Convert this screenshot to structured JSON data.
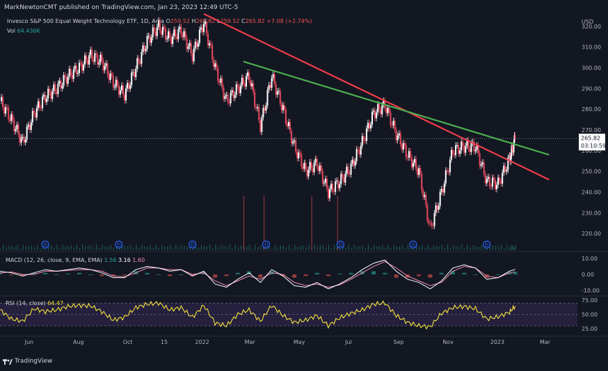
{
  "header": {
    "published": "MarkNewtonCMT published on TradingView.com, Jan 23, 2023 12:49 UTC-5",
    "symbol": "Invesco S&P 500 Equal Weight Technology ETF, 1D, Arca",
    "o_label": "O",
    "o_value": "259.52",
    "h_label": "H",
    "h_value": "265.82",
    "l_label": "L",
    "l_value": "259.52",
    "c_label": "C",
    "c_value": "265.82",
    "change": "+7.08 (+2.74%)",
    "vol_label": "Vol",
    "vol_value": "64.436K"
  },
  "price_axis": {
    "currency": "USD",
    "last_price": "265.82",
    "countdown": "03:10:59"
  },
  "macd": {
    "label": "MACD (12, 26, close, 9, EMA, EMA)",
    "v1": "1.56",
    "v2": "3.16",
    "v3": "1.60",
    "ticks": [
      "10.00",
      "0.00",
      "-10.00"
    ]
  },
  "rsi": {
    "label": "RSI (14, close)",
    "value": "64.47",
    "ticks": [
      "75.00",
      "50.00",
      "25.00"
    ]
  },
  "brand": "TradingView",
  "colors": {
    "background": "#131722",
    "up": "#ffffff",
    "down": "#e84a5f",
    "trend_red": "#ef3e4a",
    "trend_green": "#4caf50",
    "macd_line": "#ffffff",
    "signal_line": "#f48fb1",
    "rsi_line": "#f5e43b",
    "rsi_band": "#2a2346"
  },
  "chart_data": {
    "type": "line",
    "title": "Invesco S&P 500 Equal Weight Technology ETF, 1D, Arca",
    "ylabel": "USD",
    "ylim": [
      212,
      326
    ],
    "yticks": [
      220,
      230,
      240,
      250,
      260,
      270,
      280,
      290,
      300,
      310,
      320
    ],
    "x_tick_labels": [
      "Jun",
      "Aug",
      "Oct",
      "15",
      "2022",
      "Mar",
      "May",
      "Jul",
      "Sep",
      "Nov",
      "2023",
      "Mar"
    ],
    "x_tick_dates": [
      "2021-06-01",
      "2021-08-01",
      "2021-10-01",
      "2021-11-15",
      "2022-01-01",
      "2022-03-01",
      "2022-05-01",
      "2022-07-01",
      "2022-09-01",
      "2022-11-01",
      "2023-01-01",
      "2023-03-01"
    ],
    "x_range": [
      "2021-04-26",
      "2023-04-10"
    ],
    "price_series": {
      "name": "Close",
      "dates": [
        "2021-04-26",
        "2021-05-10",
        "2021-05-24",
        "2021-06-07",
        "2021-06-21",
        "2021-07-05",
        "2021-07-19",
        "2021-08-02",
        "2021-08-16",
        "2021-08-30",
        "2021-09-13",
        "2021-09-27",
        "2021-10-11",
        "2021-10-25",
        "2021-11-08",
        "2021-11-22",
        "2021-12-06",
        "2021-12-20",
        "2022-01-03",
        "2022-01-17",
        "2022-01-31",
        "2022-02-14",
        "2022-02-28",
        "2022-03-14",
        "2022-03-28",
        "2022-04-11",
        "2022-04-25",
        "2022-05-09",
        "2022-05-23",
        "2022-06-06",
        "2022-06-20",
        "2022-07-04",
        "2022-07-18",
        "2022-08-01",
        "2022-08-15",
        "2022-08-29",
        "2022-09-12",
        "2022-09-26",
        "2022-10-10",
        "2022-10-24",
        "2022-11-07",
        "2022-11-21",
        "2022-12-05",
        "2022-12-19",
        "2023-01-02",
        "2023-01-16",
        "2023-01-23"
      ],
      "values": [
        284,
        275,
        264,
        278,
        286,
        290,
        296,
        300,
        306,
        303,
        293,
        287,
        300,
        313,
        320,
        314,
        318,
        306,
        322,
        300,
        284,
        290,
        296,
        272,
        296,
        280,
        262,
        250,
        254,
        240,
        245,
        252,
        264,
        278,
        282,
        268,
        258,
        250,
        222,
        240,
        260,
        262,
        262,
        245,
        244,
        256,
        265.82
      ]
    },
    "volume_spikes": [
      {
        "date": "2022-02-21",
        "value": "high"
      },
      {
        "date": "2022-03-18",
        "value": "high"
      },
      {
        "date": "2022-05-16",
        "value": "high"
      },
      {
        "date": "2022-06-17",
        "value": "high"
      }
    ],
    "dividend_markers": [
      "2021-06-21",
      "2021-09-20",
      "2021-12-20",
      "2022-03-21",
      "2022-06-21",
      "2022-09-19",
      "2022-12-19"
    ],
    "dividend_label": "D",
    "trendlines": [
      {
        "color": "red",
        "from": {
          "date": "2022-01-03",
          "value": 326
        },
        "to": {
          "date": "2023-03-06",
          "value": 246
        }
      },
      {
        "color": "green",
        "from": {
          "date": "2022-02-21",
          "value": 303
        },
        "to": {
          "date": "2023-03-06",
          "value": 258
        }
      }
    ],
    "macd_panel": {
      "ylim": [
        -13,
        13
      ],
      "macd": [
        2,
        1,
        -1,
        1,
        3,
        2,
        3,
        4,
        3,
        1,
        -2,
        -2,
        3,
        5,
        4,
        2,
        3,
        -1,
        2,
        -6,
        -8,
        -3,
        1,
        -5,
        3,
        -1,
        -7,
        -8,
        -5,
        -9,
        -6,
        -2,
        3,
        7,
        9,
        2,
        -3,
        -5,
        -9,
        -4,
        4,
        6,
        4,
        -3,
        -2,
        2,
        3.16
      ],
      "signal": [
        1,
        1.5,
        0,
        0,
        2,
        2,
        2.5,
        3,
        3,
        2,
        -1,
        -1.5,
        1,
        4,
        4,
        3,
        3,
        0,
        1,
        -4,
        -7,
        -4,
        -1,
        -3,
        1,
        0,
        -5,
        -7,
        -6,
        -8,
        -6.5,
        -3,
        1,
        5,
        8,
        4,
        -1,
        -4,
        -7,
        -5,
        2,
        5,
        4,
        -1,
        -2,
        1,
        1.6
      ],
      "histogram_value": 1.56
    },
    "rsi_panel": {
      "ylim": [
        14,
        80
      ],
      "band": [
        30,
        70
      ],
      "midline": 50,
      "values": [
        58,
        42,
        38,
        60,
        55,
        58,
        64,
        66,
        65,
        55,
        40,
        45,
        62,
        68,
        70,
        58,
        62,
        45,
        66,
        35,
        30,
        50,
        58,
        38,
        66,
        48,
        36,
        40,
        48,
        30,
        44,
        52,
        58,
        68,
        70,
        48,
        36,
        30,
        28,
        52,
        62,
        64,
        60,
        42,
        46,
        54,
        64.47
      ]
    }
  }
}
